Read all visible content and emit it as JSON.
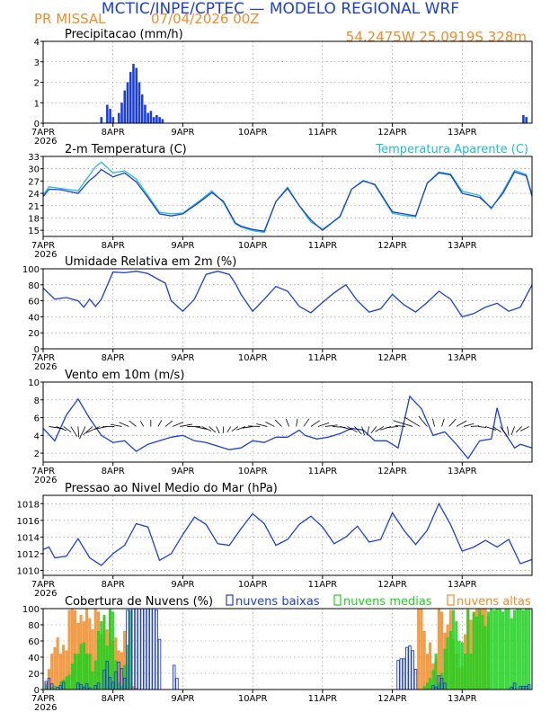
{
  "header": {
    "title": "MCTIC/INPE/CPTEC — MODELO REGIONAL WRF",
    "station": "PR MISSAL",
    "run": "07/04/2026 00Z",
    "coords": "54.2475W 25.0919S 328m"
  },
  "colors": {
    "title": "#1a3ee0",
    "orange": "#f08c2a",
    "blue": "#1a3ee0",
    "cyan": "#1fc0c8",
    "green": "#1fd11f",
    "black": "#000000"
  },
  "x_ticks": [
    "7APR",
    "8APR",
    "9APR",
    "10APR",
    "11APR",
    "12APR",
    "13APR"
  ],
  "x_year": "2026",
  "chart_data": [
    {
      "type": "bar",
      "title": "Precipitacao (mm/h)",
      "ylim": [
        0,
        4
      ],
      "yticks": [
        "0",
        "1",
        "2",
        "3",
        "4"
      ],
      "x_unit": "hours since 07APR 00Z",
      "bar_x": [
        20,
        22,
        23,
        24,
        26,
        27,
        28,
        29,
        30,
        31,
        32,
        33,
        34,
        35,
        36,
        37,
        38,
        39,
        40,
        41,
        165,
        166
      ],
      "bar_values": [
        0.3,
        0.9,
        0.7,
        0.3,
        0.5,
        1.0,
        1.6,
        2.0,
        2.5,
        2.9,
        2.7,
        2.0,
        1.4,
        0.9,
        0.5,
        0.6,
        0.3,
        0.4,
        0.3,
        0.2,
        0.4,
        0.3
      ]
    },
    {
      "type": "line",
      "title": "2-m Temperatura (C)",
      "legend": "Temperatura Aparente (C)",
      "ylim": [
        13.5,
        33
      ],
      "yticks": [
        "15",
        "18",
        "21",
        "24",
        "27",
        "30",
        "33"
      ],
      "x": [
        0,
        2,
        6,
        12,
        16,
        18,
        20,
        24,
        28,
        32,
        36,
        40,
        44,
        48,
        54,
        58,
        62,
        66,
        68,
        72,
        76,
        80,
        84,
        88,
        92,
        96,
        102,
        106,
        110,
        114,
        120,
        124,
        128,
        132,
        136,
        140,
        144,
        150,
        154,
        158,
        162,
        166,
        168
      ],
      "series": [
        {
          "name": "2-m Temperatura (C)",
          "values": [
            23.2,
            25,
            24.9,
            24,
            27.2,
            28.3,
            29.8,
            28,
            29,
            26.8,
            23,
            19,
            18.5,
            19,
            22,
            24.2,
            22,
            16.8,
            16,
            15.2,
            14.8,
            22,
            25.2,
            21,
            17.5,
            15,
            18.4,
            25,
            27,
            26.2,
            19.5,
            19,
            18.5,
            26.5,
            29,
            28.5,
            24,
            23,
            20.5,
            24,
            29.2,
            28.3,
            23.3
          ]
        },
        {
          "name": "Temperatura Aparente (C)",
          "values": [
            23.6,
            25.6,
            25.2,
            24.6,
            28.5,
            30.5,
            31.6,
            29,
            29.5,
            27.5,
            23.5,
            19.4,
            19,
            19.2,
            22.3,
            24.6,
            21.7,
            16.6,
            15.8,
            14.9,
            14.5,
            22,
            25.5,
            21,
            17,
            15.3,
            18.2,
            25,
            27.2,
            26,
            19.2,
            18.6,
            18.3,
            26.5,
            29.2,
            28.7,
            24.5,
            23.5,
            20.2,
            24.5,
            29.6,
            28.6,
            23.7
          ]
        }
      ]
    },
    {
      "type": "line",
      "title": "Umidade Relativa em 2m (%)",
      "ylim": [
        0,
        100
      ],
      "yticks": [
        "0",
        "20",
        "40",
        "60",
        "80",
        "100"
      ],
      "x": [
        0,
        4,
        8,
        12,
        14,
        16,
        18,
        20,
        24,
        28,
        32,
        36,
        40,
        42,
        44,
        48,
        52,
        56,
        60,
        64,
        66,
        68,
        72,
        76,
        80,
        84,
        88,
        92,
        96,
        100,
        104,
        108,
        112,
        116,
        120,
        124,
        128,
        132,
        136,
        140,
        144,
        148,
        152,
        156,
        160,
        164,
        168
      ],
      "series": [
        {
          "name": "Umidade Relativa em 2m (%)",
          "values": [
            76,
            62,
            64,
            60,
            52,
            62,
            53,
            62,
            96,
            95,
            97,
            94,
            86,
            82,
            60,
            47,
            62,
            93,
            97,
            93,
            82,
            68,
            47,
            62,
            78,
            72,
            53,
            45,
            58,
            70,
            80,
            60,
            46,
            50,
            68,
            55,
            46,
            58,
            72,
            62,
            40,
            44,
            52,
            57,
            47,
            52,
            80
          ]
        }
      ]
    },
    {
      "type": "line",
      "title": "Vento em 10m (m/s)",
      "ylim": [
        1,
        10
      ],
      "yticks": [
        "2",
        "4",
        "6",
        "8",
        "10"
      ],
      "x": [
        0,
        4,
        8,
        12,
        16,
        20,
        24,
        28,
        32,
        36,
        40,
        44,
        48,
        52,
        56,
        60,
        64,
        68,
        72,
        76,
        80,
        84,
        88,
        90,
        94,
        98,
        102,
        106,
        110,
        114,
        118,
        122,
        126,
        130,
        134,
        138,
        142,
        146,
        150,
        154,
        156,
        158,
        162,
        164,
        168
      ],
      "series": [
        {
          "name": "Vento em 10m (m/s)",
          "values": [
            4.8,
            3.4,
            6.3,
            8.1,
            5.9,
            4,
            3.2,
            3.4,
            2.2,
            3,
            3.4,
            3.8,
            4,
            3.4,
            3.2,
            2.8,
            2.4,
            2.6,
            3.4,
            3.2,
            3.8,
            3.8,
            4.6,
            4,
            3.6,
            3.8,
            4.2,
            4.8,
            4.6,
            3.4,
            3.4,
            2.6,
            8.4,
            7,
            4,
            4.4,
            3,
            1.4,
            3.4,
            3.6,
            7.1,
            4.6,
            2.6,
            3,
            2.6
          ]
        }
      ]
    },
    {
      "type": "line",
      "title": "Pressao ao Nivel Medio do Mar (hPa)",
      "ylim": [
        1009.4,
        1019
      ],
      "yticks": [
        "1010",
        "1012",
        "1014",
        "1016",
        "1018"
      ],
      "x": [
        0,
        2,
        4,
        8,
        12,
        16,
        20,
        24,
        28,
        32,
        36,
        40,
        44,
        48,
        52,
        56,
        60,
        64,
        68,
        72,
        76,
        80,
        84,
        88,
        92,
        96,
        100,
        104,
        108,
        112,
        116,
        120,
        124,
        128,
        132,
        136,
        140,
        144,
        148,
        152,
        156,
        160,
        164,
        168
      ],
      "series": [
        {
          "name": "Pressao ao Nivel Medio do Mar (hPa)",
          "values": [
            1012.5,
            1012.8,
            1011.5,
            1011.7,
            1013.8,
            1011.5,
            1010.6,
            1012,
            1013,
            1015.6,
            1015.2,
            1011.2,
            1012,
            1014.3,
            1016.4,
            1015.5,
            1013.2,
            1013,
            1015,
            1016.8,
            1015.6,
            1013,
            1013.7,
            1015.5,
            1016.5,
            1015.2,
            1013.2,
            1014,
            1015.3,
            1013.4,
            1013.7,
            1016.9,
            1014.8,
            1013.1,
            1014.8,
            1018,
            1015.5,
            1012.3,
            1012.8,
            1013.6,
            1012.8,
            1013.7,
            1010.8,
            1011.3
          ]
        }
      ]
    },
    {
      "type": "bar",
      "title": "Cobertura de Nuvens (%)",
      "ylim": [
        0,
        100
      ],
      "yticks": [
        "0",
        "20",
        "40",
        "60",
        "80",
        "100"
      ],
      "x_unit": "hours since 07APR 00Z",
      "series": [
        {
          "name": "nuvens baixas",
          "x": [
            1,
            2,
            3,
            5,
            6,
            7,
            12,
            13,
            14,
            15,
            16,
            18,
            19,
            21,
            22,
            23,
            24,
            25,
            26,
            27,
            28,
            29,
            30,
            31,
            32,
            33,
            34,
            35,
            36,
            37,
            38,
            39,
            40,
            45,
            46,
            122,
            123,
            124,
            125,
            126,
            127,
            128,
            134,
            135,
            136,
            137,
            138,
            161,
            162,
            164,
            165,
            166,
            167
          ],
          "values": [
            10,
            14,
            7,
            3,
            5,
            9,
            8,
            6,
            3,
            7,
            2,
            5,
            8,
            24,
            35,
            15,
            9,
            22,
            34,
            26,
            14,
            98,
            100,
            100,
            100,
            100,
            100,
            100,
            100,
            100,
            100,
            98,
            62,
            30,
            14,
            36,
            38,
            38,
            52,
            54,
            48,
            25,
            5,
            3,
            17,
            14,
            8,
            3,
            8,
            4,
            4,
            4,
            6
          ]
        },
        {
          "name": "nuvens medias",
          "x": [
            1,
            3,
            4,
            6,
            7,
            8,
            9,
            10,
            11,
            12,
            13,
            14,
            15,
            16,
            17,
            18,
            19,
            20,
            21,
            22,
            23,
            24,
            25,
            26,
            27,
            28,
            29,
            30,
            131,
            132,
            133,
            134,
            135,
            136,
            137,
            138,
            139,
            140,
            141,
            142,
            143,
            144,
            145,
            146,
            147,
            148,
            149,
            150,
            151,
            152,
            153,
            154,
            155,
            156,
            157,
            158,
            159,
            160,
            161,
            162,
            163,
            164,
            165,
            166,
            167
          ],
          "values": [
            6,
            3,
            4,
            10,
            12,
            16,
            18,
            32,
            44,
            44,
            56,
            58,
            44,
            44,
            22,
            36,
            72,
            84,
            92,
            54,
            100,
            96,
            36,
            8,
            4,
            30,
            55,
            98,
            4,
            8,
            14,
            24,
            44,
            8,
            20,
            50,
            64,
            72,
            98,
            84,
            60,
            58,
            44,
            98,
            44,
            95,
            90,
            98,
            92,
            78,
            96,
            100,
            98,
            100,
            100,
            96,
            100,
            100,
            88,
            98,
            100,
            100,
            98,
            100,
            100
          ]
        },
        {
          "name": "nuvens altas",
          "x": [
            1,
            2,
            3,
            4,
            5,
            6,
            7,
            8,
            9,
            10,
            11,
            12,
            13,
            14,
            15,
            16,
            17,
            18,
            19,
            20,
            21,
            22,
            23,
            24,
            25,
            26,
            27,
            28,
            29,
            30,
            31,
            32,
            129,
            130,
            131,
            132,
            133,
            134,
            135,
            136,
            137,
            138,
            139,
            140,
            141,
            142,
            143,
            144,
            145,
            146,
            147,
            148,
            149,
            150,
            151,
            152,
            153
          ],
          "values": [
            8,
            25,
            44,
            52,
            64,
            44,
            55,
            48,
            98,
            100,
            98,
            82,
            92,
            84,
            100,
            88,
            74,
            100,
            96,
            68,
            90,
            74,
            98,
            60,
            64,
            48,
            46,
            72,
            32,
            8,
            4,
            2,
            100,
            100,
            72,
            44,
            58,
            32,
            38,
            100,
            96,
            70,
            80,
            98,
            62,
            44,
            26,
            28,
            68,
            100,
            86,
            96,
            100,
            100,
            100,
            100,
            90
          ]
        }
      ]
    }
  ]
}
